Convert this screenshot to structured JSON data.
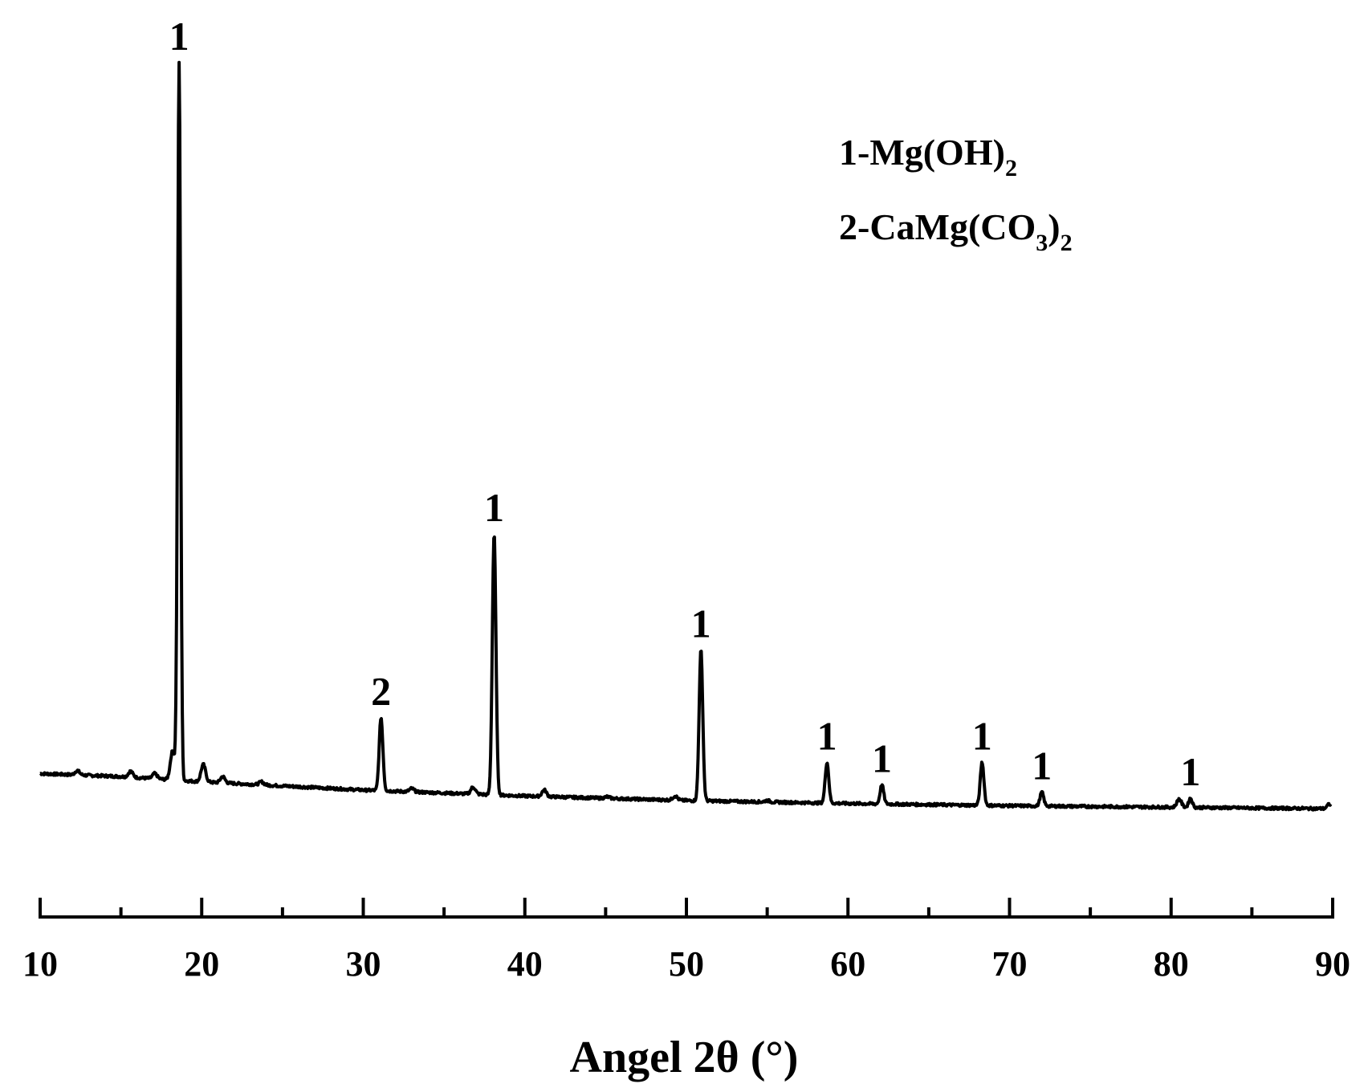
{
  "chart_data": {
    "type": "line",
    "xlabel": "Angel 2θ (°)",
    "ylabel": "",
    "xlim": [
      10,
      90
    ],
    "x_ticks": [
      "10",
      "20",
      "30",
      "40",
      "50",
      "60",
      "70",
      "80",
      "90"
    ],
    "x_minor_tick_step": 5,
    "grid": false,
    "y_axis_shown": false,
    "legend": {
      "placement": "top-right",
      "entries": [
        {
          "prefix": "1-Mg(OH)",
          "sub": "2",
          "after": "",
          "sub2": ""
        },
        {
          "prefix": "2-CaMg(CO",
          "sub": "3",
          "after": ")",
          "sub2": "2"
        }
      ]
    },
    "baseline": [
      [
        10,
        5.0
      ],
      [
        15,
        4.6
      ],
      [
        20,
        3.9
      ],
      [
        30,
        2.8
      ],
      [
        40,
        2.0
      ],
      [
        50,
        1.4
      ],
      [
        60,
        1.0
      ],
      [
        70,
        0.7
      ],
      [
        80,
        0.5
      ],
      [
        90,
        0.3
      ]
    ],
    "peaks": [
      {
        "x": 18.6,
        "y": 100.0,
        "label": "1"
      },
      {
        "x": 31.1,
        "y": 12.5,
        "label": "2"
      },
      {
        "x": 38.1,
        "y": 37.0,
        "label": "1"
      },
      {
        "x": 50.9,
        "y": 21.5,
        "label": "1"
      },
      {
        "x": 58.7,
        "y": 6.5,
        "label": "1"
      },
      {
        "x": 62.1,
        "y": 3.5,
        "label": "1"
      },
      {
        "x": 68.3,
        "y": 6.5,
        "label": "1"
      },
      {
        "x": 72.0,
        "y": 2.5,
        "label": "1"
      },
      {
        "x": 81.2,
        "y": 1.7,
        "label": "1"
      }
    ],
    "minor_peaks": [
      {
        "x": 12.3,
        "y": 5.4
      },
      {
        "x": 15.6,
        "y": 5.3
      },
      {
        "x": 17.1,
        "y": 5.0
      },
      {
        "x": 18.2,
        "y": 8.0
      },
      {
        "x": 20.1,
        "y": 6.2
      },
      {
        "x": 21.3,
        "y": 4.6
      },
      {
        "x": 23.7,
        "y": 3.9
      },
      {
        "x": 33.0,
        "y": 3.0
      },
      {
        "x": 36.8,
        "y": 3.2
      },
      {
        "x": 41.2,
        "y": 2.8
      },
      {
        "x": 45.1,
        "y": 1.9
      },
      {
        "x": 49.3,
        "y": 2.0
      },
      {
        "x": 55.0,
        "y": 1.4
      },
      {
        "x": 80.5,
        "y": 1.6
      },
      {
        "x": 89.8,
        "y": 0.9
      }
    ]
  }
}
